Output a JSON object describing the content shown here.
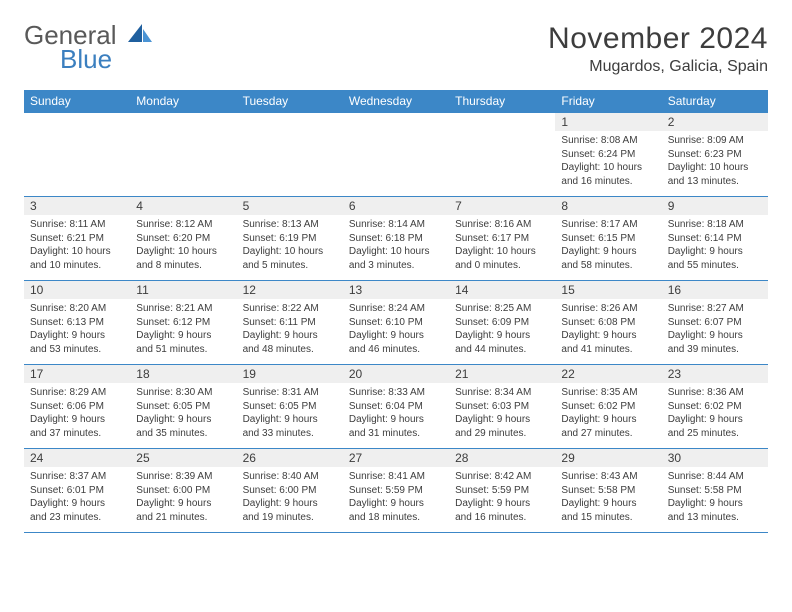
{
  "logo": {
    "word1": "General",
    "word2": "Blue"
  },
  "title": "November 2024",
  "location": "Mugardos, Galicia, Spain",
  "colors": {
    "header_bg": "#3c87c7",
    "header_text": "#ffffff",
    "border": "#3c87c7",
    "daynum_bg": "#efefef",
    "body_text": "#3d3d3d",
    "logo_gray": "#595959",
    "logo_blue": "#3b7fbf",
    "page_bg": "#ffffff"
  },
  "calendar": {
    "type": "table",
    "columns": [
      "Sunday",
      "Monday",
      "Tuesday",
      "Wednesday",
      "Thursday",
      "Friday",
      "Saturday"
    ],
    "col_width_pct": 14.28,
    "daynum_fontsize": 12,
    "info_fontsize": 10,
    "header_fontsize": 12,
    "rows": [
      [
        {
          "n": "",
          "sr": "",
          "ss": "",
          "dl": ""
        },
        {
          "n": "",
          "sr": "",
          "ss": "",
          "dl": ""
        },
        {
          "n": "",
          "sr": "",
          "ss": "",
          "dl": ""
        },
        {
          "n": "",
          "sr": "",
          "ss": "",
          "dl": ""
        },
        {
          "n": "",
          "sr": "",
          "ss": "",
          "dl": ""
        },
        {
          "n": "1",
          "sr": "Sunrise: 8:08 AM",
          "ss": "Sunset: 6:24 PM",
          "dl": "Daylight: 10 hours and 16 minutes."
        },
        {
          "n": "2",
          "sr": "Sunrise: 8:09 AM",
          "ss": "Sunset: 6:23 PM",
          "dl": "Daylight: 10 hours and 13 minutes."
        }
      ],
      [
        {
          "n": "3",
          "sr": "Sunrise: 8:11 AM",
          "ss": "Sunset: 6:21 PM",
          "dl": "Daylight: 10 hours and 10 minutes."
        },
        {
          "n": "4",
          "sr": "Sunrise: 8:12 AM",
          "ss": "Sunset: 6:20 PM",
          "dl": "Daylight: 10 hours and 8 minutes."
        },
        {
          "n": "5",
          "sr": "Sunrise: 8:13 AM",
          "ss": "Sunset: 6:19 PM",
          "dl": "Daylight: 10 hours and 5 minutes."
        },
        {
          "n": "6",
          "sr": "Sunrise: 8:14 AM",
          "ss": "Sunset: 6:18 PM",
          "dl": "Daylight: 10 hours and 3 minutes."
        },
        {
          "n": "7",
          "sr": "Sunrise: 8:16 AM",
          "ss": "Sunset: 6:17 PM",
          "dl": "Daylight: 10 hours and 0 minutes."
        },
        {
          "n": "8",
          "sr": "Sunrise: 8:17 AM",
          "ss": "Sunset: 6:15 PM",
          "dl": "Daylight: 9 hours and 58 minutes."
        },
        {
          "n": "9",
          "sr": "Sunrise: 8:18 AM",
          "ss": "Sunset: 6:14 PM",
          "dl": "Daylight: 9 hours and 55 minutes."
        }
      ],
      [
        {
          "n": "10",
          "sr": "Sunrise: 8:20 AM",
          "ss": "Sunset: 6:13 PM",
          "dl": "Daylight: 9 hours and 53 minutes."
        },
        {
          "n": "11",
          "sr": "Sunrise: 8:21 AM",
          "ss": "Sunset: 6:12 PM",
          "dl": "Daylight: 9 hours and 51 minutes."
        },
        {
          "n": "12",
          "sr": "Sunrise: 8:22 AM",
          "ss": "Sunset: 6:11 PM",
          "dl": "Daylight: 9 hours and 48 minutes."
        },
        {
          "n": "13",
          "sr": "Sunrise: 8:24 AM",
          "ss": "Sunset: 6:10 PM",
          "dl": "Daylight: 9 hours and 46 minutes."
        },
        {
          "n": "14",
          "sr": "Sunrise: 8:25 AM",
          "ss": "Sunset: 6:09 PM",
          "dl": "Daylight: 9 hours and 44 minutes."
        },
        {
          "n": "15",
          "sr": "Sunrise: 8:26 AM",
          "ss": "Sunset: 6:08 PM",
          "dl": "Daylight: 9 hours and 41 minutes."
        },
        {
          "n": "16",
          "sr": "Sunrise: 8:27 AM",
          "ss": "Sunset: 6:07 PM",
          "dl": "Daylight: 9 hours and 39 minutes."
        }
      ],
      [
        {
          "n": "17",
          "sr": "Sunrise: 8:29 AM",
          "ss": "Sunset: 6:06 PM",
          "dl": "Daylight: 9 hours and 37 minutes."
        },
        {
          "n": "18",
          "sr": "Sunrise: 8:30 AM",
          "ss": "Sunset: 6:05 PM",
          "dl": "Daylight: 9 hours and 35 minutes."
        },
        {
          "n": "19",
          "sr": "Sunrise: 8:31 AM",
          "ss": "Sunset: 6:05 PM",
          "dl": "Daylight: 9 hours and 33 minutes."
        },
        {
          "n": "20",
          "sr": "Sunrise: 8:33 AM",
          "ss": "Sunset: 6:04 PM",
          "dl": "Daylight: 9 hours and 31 minutes."
        },
        {
          "n": "21",
          "sr": "Sunrise: 8:34 AM",
          "ss": "Sunset: 6:03 PM",
          "dl": "Daylight: 9 hours and 29 minutes."
        },
        {
          "n": "22",
          "sr": "Sunrise: 8:35 AM",
          "ss": "Sunset: 6:02 PM",
          "dl": "Daylight: 9 hours and 27 minutes."
        },
        {
          "n": "23",
          "sr": "Sunrise: 8:36 AM",
          "ss": "Sunset: 6:02 PM",
          "dl": "Daylight: 9 hours and 25 minutes."
        }
      ],
      [
        {
          "n": "24",
          "sr": "Sunrise: 8:37 AM",
          "ss": "Sunset: 6:01 PM",
          "dl": "Daylight: 9 hours and 23 minutes."
        },
        {
          "n": "25",
          "sr": "Sunrise: 8:39 AM",
          "ss": "Sunset: 6:00 PM",
          "dl": "Daylight: 9 hours and 21 minutes."
        },
        {
          "n": "26",
          "sr": "Sunrise: 8:40 AM",
          "ss": "Sunset: 6:00 PM",
          "dl": "Daylight: 9 hours and 19 minutes."
        },
        {
          "n": "27",
          "sr": "Sunrise: 8:41 AM",
          "ss": "Sunset: 5:59 PM",
          "dl": "Daylight: 9 hours and 18 minutes."
        },
        {
          "n": "28",
          "sr": "Sunrise: 8:42 AM",
          "ss": "Sunset: 5:59 PM",
          "dl": "Daylight: 9 hours and 16 minutes."
        },
        {
          "n": "29",
          "sr": "Sunrise: 8:43 AM",
          "ss": "Sunset: 5:58 PM",
          "dl": "Daylight: 9 hours and 15 minutes."
        },
        {
          "n": "30",
          "sr": "Sunrise: 8:44 AM",
          "ss": "Sunset: 5:58 PM",
          "dl": "Daylight: 9 hours and 13 minutes."
        }
      ]
    ]
  }
}
